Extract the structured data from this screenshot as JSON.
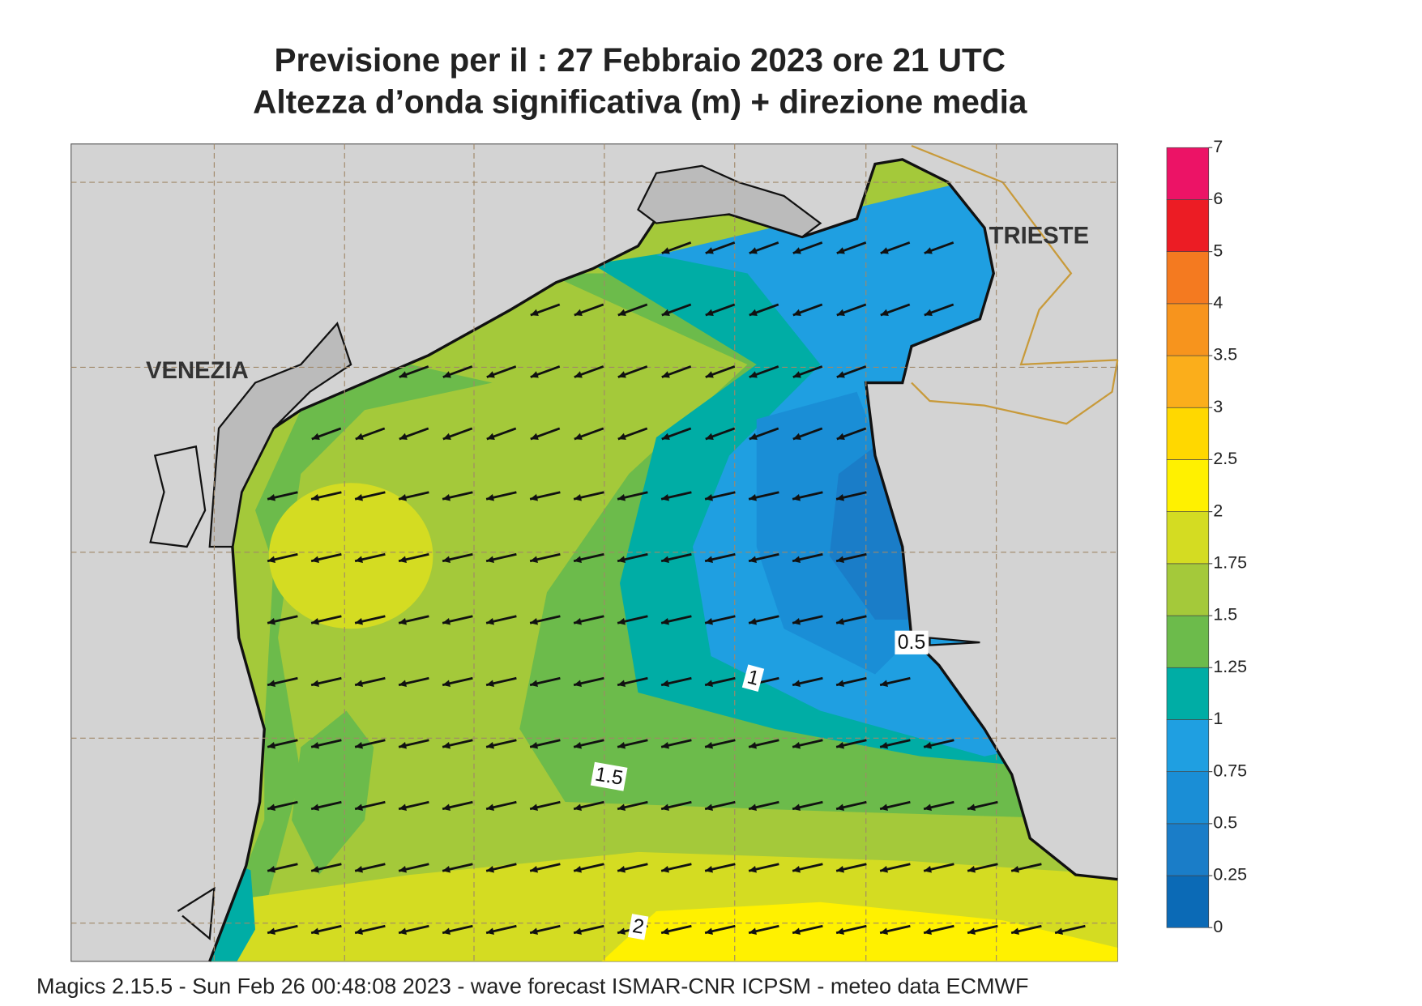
{
  "header": {
    "title_line_1": "Previsione per il  :  27  Febbraio 2023   ore 21 UTC",
    "title_line_2": "Altezza d’onda significativa (m) + direzione media"
  },
  "places": [
    "VENEZIA",
    "TRIESTE"
  ],
  "contour_labels": [
    0.5,
    1,
    1.5,
    2
  ],
  "legend": {
    "levels": [
      0,
      0.25,
      0.5,
      0.75,
      1,
      1.25,
      1.5,
      1.75,
      2,
      2.5,
      3,
      3.5,
      4,
      5,
      6,
      7
    ],
    "colors": [
      "#0b6ab6",
      "#1a7dc8",
      "#1a8ed6",
      "#1f9fe1",
      "#00ada5",
      "#6cbb4b",
      "#a4c93a",
      "#d4dc22",
      "#fff100",
      "#ffd800",
      "#fbae1b",
      "#f7941d",
      "#f47a20",
      "#ec1c24",
      "#ec1366"
    ]
  },
  "footer": "Magics 2.15.5 - Sun Feb 26 00:48:08 2023 - wave forecast  ISMAR-CNR  ICPSM - meteo data    ECMWF"
}
